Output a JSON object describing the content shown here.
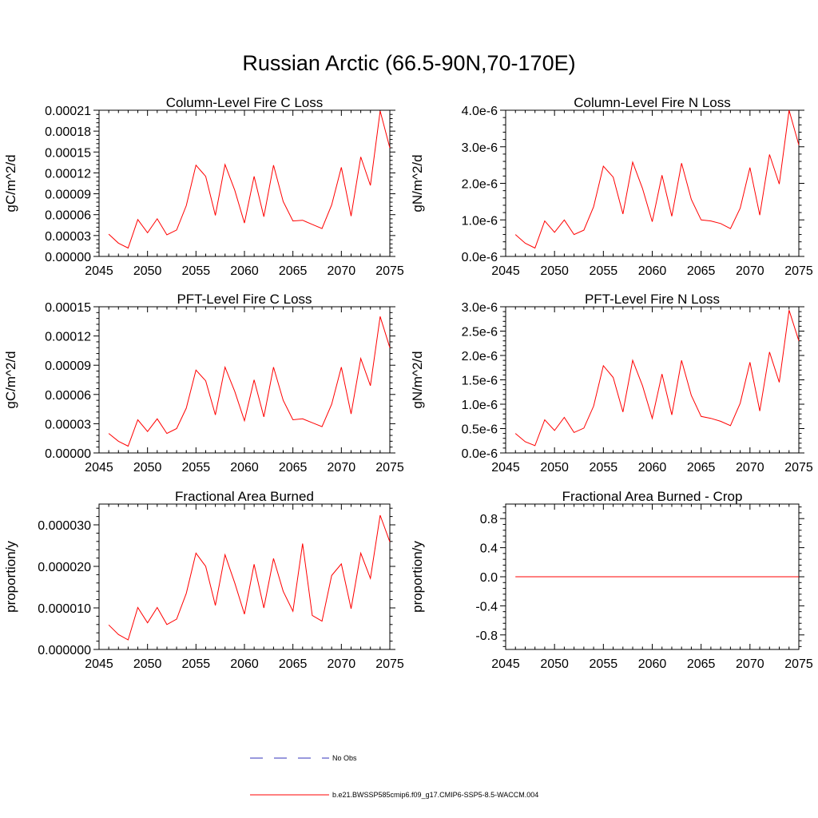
{
  "title": "Russian Arctic (66.5-90N,70-170E)",
  "colors": {
    "model": "#ff0000",
    "obs": "#3333bb",
    "axis": "#000000"
  },
  "legend": {
    "obs_label": "No Obs",
    "model_label": "b.e21.BWSSP585cmip6.f09_g17.CMIP6-SSP5-8.5-WACCM.004"
  },
  "chart_data": [
    {
      "type": "line",
      "title": "Column-Level Fire C Loss",
      "xlabel": "",
      "ylabel": "gC/m^2/d",
      "xlim": [
        2045,
        2075
      ],
      "ylim": [
        0,
        0.00021
      ],
      "xticks": [
        2045,
        2050,
        2055,
        2060,
        2065,
        2070,
        2075
      ],
      "xtick_labels": [
        "2045",
        "2050",
        "2055",
        "2060",
        "2065",
        "2070",
        "2075"
      ],
      "yticks": [
        0,
        3e-05,
        6e-05,
        9e-05,
        0.00012,
        0.00015,
        0.00018,
        0.00021
      ],
      "ytick_labels": [
        "0.00000",
        "0.00003",
        "0.00006",
        "0.00009",
        "0.00012",
        "0.00015",
        "0.00018",
        "0.00021"
      ],
      "x": [
        2046,
        2047,
        2048,
        2049,
        2050,
        2051,
        2052,
        2053,
        2054,
        2055,
        2056,
        2057,
        2058,
        2059,
        2060,
        2061,
        2062,
        2063,
        2064,
        2065,
        2066,
        2067,
        2068,
        2069,
        2070,
        2071,
        2072,
        2073,
        2074,
        2075
      ],
      "series": [
        {
          "name": "b.e21.BWSSP585cmip6.f09_g17.CMIP6-SSP5-8.5-WACCM.004",
          "values": [
            3.2e-05,
            1.9e-05,
            1.2e-05,
            5.3e-05,
            3.4e-05,
            5.4e-05,
            3.1e-05,
            3.8e-05,
            7.3e-05,
            0.000131,
            0.000115,
            5.9e-05,
            0.000132,
            9.5e-05,
            4.8e-05,
            0.000115,
            5.7e-05,
            0.000131,
            7.9e-05,
            5.1e-05,
            5.2e-05,
            4.6e-05,
            4e-05,
            7.4e-05,
            0.000128,
            5.8e-05,
            0.000143,
            0.000102,
            0.000209,
            0.000156
          ]
        }
      ]
    },
    {
      "type": "line",
      "title": "Column-Level Fire N Loss",
      "xlabel": "",
      "ylabel": "gN/m^2/d",
      "xlim": [
        2045,
        2075
      ],
      "ylim": [
        0,
        4e-06
      ],
      "xticks": [
        2045,
        2050,
        2055,
        2060,
        2065,
        2070,
        2075
      ],
      "xtick_labels": [
        "2045",
        "2050",
        "2055",
        "2060",
        "2065",
        "2070",
        "2075"
      ],
      "yticks": [
        0,
        1e-06,
        2e-06,
        3e-06,
        4e-06
      ],
      "ytick_labels": [
        "0.0e-6",
        "1.0e-6",
        "2.0e-6",
        "3.0e-6",
        "4.0e-6"
      ],
      "x": [
        2046,
        2047,
        2048,
        2049,
        2050,
        2051,
        2052,
        2053,
        2054,
        2055,
        2056,
        2057,
        2058,
        2059,
        2060,
        2061,
        2062,
        2063,
        2064,
        2065,
        2066,
        2067,
        2068,
        2069,
        2070,
        2071,
        2072,
        2073,
        2074,
        2075
      ],
      "series": [
        {
          "name": "b.e21.BWSSP585cmip6.f09_g17.CMIP6-SSP5-8.5-WACCM.004",
          "values": [
            6e-07,
            3.6e-07,
            2.3e-07,
            9.7e-07,
            6.6e-07,
            1e-06,
            6e-07,
            7.2e-07,
            1.36e-06,
            2.47e-06,
            2.17e-06,
            1.16e-06,
            2.58e-06,
            1.86e-06,
            9.5e-07,
            2.22e-06,
            1.1e-06,
            2.55e-06,
            1.56e-06,
            1e-06,
            9.7e-07,
            9e-07,
            7.6e-07,
            1.32e-06,
            2.43e-06,
            1.13e-06,
            2.79e-06,
            1.98e-06,
            4e-06,
            3.05e-06
          ]
        }
      ]
    },
    {
      "type": "line",
      "title": "PFT-Level Fire C Loss",
      "xlabel": "",
      "ylabel": "gC/m^2/d",
      "xlim": [
        2045,
        2075
      ],
      "ylim": [
        0,
        0.00015
      ],
      "xticks": [
        2045,
        2050,
        2055,
        2060,
        2065,
        2070,
        2075
      ],
      "xtick_labels": [
        "2045",
        "2050",
        "2055",
        "2060",
        "2065",
        "2070",
        "2075"
      ],
      "yticks": [
        0,
        3e-05,
        6e-05,
        9e-05,
        0.00012,
        0.00015
      ],
      "ytick_labels": [
        "0.00000",
        "0.00003",
        "0.00006",
        "0.00009",
        "0.00012",
        "0.00015"
      ],
      "x": [
        2046,
        2047,
        2048,
        2049,
        2050,
        2051,
        2052,
        2053,
        2054,
        2055,
        2056,
        2057,
        2058,
        2059,
        2060,
        2061,
        2062,
        2063,
        2064,
        2065,
        2066,
        2067,
        2068,
        2069,
        2070,
        2071,
        2072,
        2073,
        2074,
        2075
      ],
      "series": [
        {
          "name": "b.e21.BWSSP585cmip6.f09_g17.CMIP6-SSP5-8.5-WACCM.004",
          "values": [
            2e-05,
            1.2e-05,
            7e-06,
            3.4e-05,
            2.2e-05,
            3.5e-05,
            2e-05,
            2.5e-05,
            4.6e-05,
            8.5e-05,
            7.4e-05,
            3.9e-05,
            8.8e-05,
            6.3e-05,
            3.3e-05,
            7.5e-05,
            3.7e-05,
            8.8e-05,
            5.4e-05,
            3.4e-05,
            3.5e-05,
            3.1e-05,
            2.7e-05,
            5e-05,
            8.8e-05,
            4e-05,
            9.7e-05,
            6.9e-05,
            0.00014,
            0.000108
          ]
        }
      ]
    },
    {
      "type": "line",
      "title": "PFT-Level Fire N Loss",
      "xlabel": "",
      "ylabel": "gN/m^2/d",
      "xlim": [
        2045,
        2075
      ],
      "ylim": [
        0,
        3e-06
      ],
      "xticks": [
        2045,
        2050,
        2055,
        2060,
        2065,
        2070,
        2075
      ],
      "xtick_labels": [
        "2045",
        "2050",
        "2055",
        "2060",
        "2065",
        "2070",
        "2075"
      ],
      "yticks": [
        0,
        5e-07,
        1e-06,
        1.5e-06,
        2e-06,
        2.5e-06,
        3e-06
      ],
      "ytick_labels": [
        "0.0e-6",
        "0.5e-6",
        "1.0e-6",
        "1.5e-6",
        "2.0e-6",
        "2.5e-6",
        "3.0e-6"
      ],
      "x": [
        2046,
        2047,
        2048,
        2049,
        2050,
        2051,
        2052,
        2053,
        2054,
        2055,
        2056,
        2057,
        2058,
        2059,
        2060,
        2061,
        2062,
        2063,
        2064,
        2065,
        2066,
        2067,
        2068,
        2069,
        2070,
        2071,
        2072,
        2073,
        2074,
        2075
      ],
      "series": [
        {
          "name": "b.e21.BWSSP585cmip6.f09_g17.CMIP6-SSP5-8.5-WACCM.004",
          "values": [
            4e-07,
            2.3e-07,
            1.5e-07,
            6.8e-07,
            4.6e-07,
            7.3e-07,
            4.2e-07,
            5.1e-07,
            9.6e-07,
            1.79e-06,
            1.55e-06,
            8.4e-07,
            1.9e-06,
            1.38e-06,
            7.1e-07,
            1.62e-06,
            7.8e-07,
            1.9e-06,
            1.18e-06,
            7.5e-07,
            7.1e-07,
            6.5e-07,
            5.6e-07,
            1.02e-06,
            1.86e-06,
            8.6e-07,
            2.07e-06,
            1.45e-06,
            2.93e-06,
            2.3e-06
          ]
        }
      ]
    },
    {
      "type": "line",
      "title": "Fractional Area Burned",
      "xlabel": "",
      "ylabel": "proportion/y",
      "xlim": [
        2045,
        2075
      ],
      "ylim": [
        0,
        3.5e-05
      ],
      "xticks": [
        2045,
        2050,
        2055,
        2060,
        2065,
        2070,
        2075
      ],
      "xtick_labels": [
        "2045",
        "2050",
        "2055",
        "2060",
        "2065",
        "2070",
        "2075"
      ],
      "yticks": [
        0,
        1e-05,
        2e-05,
        3e-05
      ],
      "ytick_labels": [
        "0.000000",
        "0.000010",
        "0.000020",
        "0.000030"
      ],
      "x": [
        2046,
        2047,
        2048,
        2049,
        2050,
        2051,
        2052,
        2053,
        2054,
        2055,
        2056,
        2057,
        2058,
        2059,
        2060,
        2061,
        2062,
        2063,
        2064,
        2065,
        2066,
        2067,
        2068,
        2069,
        2070,
        2071,
        2072,
        2073,
        2074,
        2075
      ],
      "series": [
        {
          "name": "b.e21.BWSSP585cmip6.f09_g17.CMIP6-SSP5-8.5-WACCM.004",
          "values": [
            5.9e-06,
            3.6e-06,
            2.3e-06,
            1.01e-05,
            6.4e-06,
            1.01e-05,
            6e-06,
            7.3e-06,
            1.35e-05,
            2.32e-05,
            2e-05,
            1.06e-05,
            2.28e-05,
            1.6e-05,
            8.5e-06,
            2.05e-05,
            1e-05,
            2.19e-05,
            1.4e-05,
            9.2e-06,
            2.55e-05,
            8.2e-06,
            6.8e-06,
            1.78e-05,
            2.06e-05,
            9.8e-06,
            2.32e-05,
            1.71e-05,
            3.23e-05,
            2.59e-05
          ]
        }
      ]
    },
    {
      "type": "line",
      "title": "Fractional Area Burned - Crop",
      "xlabel": "",
      "ylabel": "proportion/y",
      "xlim": [
        2045,
        2075
      ],
      "ylim": [
        -1.0,
        1.0
      ],
      "xticks": [
        2045,
        2050,
        2055,
        2060,
        2065,
        2070,
        2075
      ],
      "xtick_labels": [
        "2045",
        "2050",
        "2055",
        "2060",
        "2065",
        "2070",
        "2075"
      ],
      "yticks": [
        -0.8,
        -0.4,
        0.0,
        0.4,
        0.8
      ],
      "ytick_labels": [
        "-0.8",
        "-0.4",
        "0.0",
        "0.4",
        "0.8"
      ],
      "x": [
        2046,
        2047,
        2048,
        2049,
        2050,
        2051,
        2052,
        2053,
        2054,
        2055,
        2056,
        2057,
        2058,
        2059,
        2060,
        2061,
        2062,
        2063,
        2064,
        2065,
        2066,
        2067,
        2068,
        2069,
        2070,
        2071,
        2072,
        2073,
        2074,
        2075
      ],
      "series": [
        {
          "name": "b.e21.BWSSP585cmip6.f09_g17.CMIP6-SSP5-8.5-WACCM.004",
          "values": [
            0,
            0,
            0,
            0,
            0,
            0,
            0,
            0,
            0,
            0,
            0,
            0,
            0,
            0,
            0,
            0,
            0,
            0,
            0,
            0,
            0,
            0,
            0,
            0,
            0,
            0,
            0,
            0,
            0,
            0
          ]
        }
      ]
    }
  ]
}
